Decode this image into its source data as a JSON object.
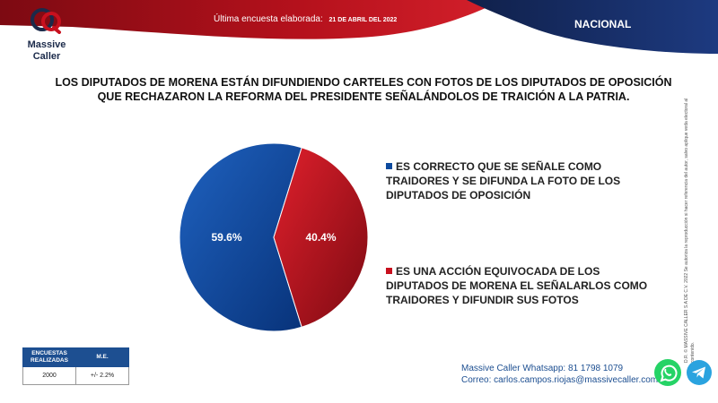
{
  "header": {
    "brand": "Massive Caller",
    "brand_line1": "Massive",
    "brand_line2": "Caller",
    "last_poll_label": "Última encuesta elaborada:",
    "last_poll_date": "21 DE ABRIL DEL 2022",
    "scope": "NACIONAL"
  },
  "headline": "LOS DIPUTADOS DE MORENA ESTÁN DIFUNDIENDO CARTELES CON FOTOS DE LOS DIPUTADOS DE OPOSICIÓN QUE RECHAZARON LA REFORMA DEL PRESIDENTE SEÑALÁNDOLOS DE TRAICIÓN A LA PATRIA.",
  "chart_data": {
    "type": "pie",
    "title": "",
    "slices": [
      {
        "label": "ES CORRECTO QUE SE SEÑALE COMO TRAIDORES Y SE DIFUNDA LA FOTO DE LOS DIPUTADOS DE OPOSICIÓN",
        "value": 59.6,
        "display": "59.6%",
        "color": "#0d4a9e"
      },
      {
        "label": "ES UNA ACCIÓN EQUIVOCADA DE LOS DIPUTADOS DE MORENA EL SEÑALARLOS COMO TRAIDORES Y DIFUNDIR SUS FOTOS",
        "value": 40.4,
        "display": "40.4%",
        "color": "#c8101e"
      }
    ],
    "legend_position": "right"
  },
  "stats_table": {
    "headers": [
      "ENCUESTAS REALIZADAS",
      "M.E."
    ],
    "values": [
      "2000",
      "+/- 2.2%"
    ]
  },
  "contact": {
    "whatsapp_label": "Massive Caller Whatsapp:",
    "whatsapp_number": "81 1798 1079",
    "email_label": "Correo:",
    "email": "carlos.campos.riojas@massivecaller.com"
  },
  "side_note": "D.R. © MASSIVE CALLER S.A DE C.V. 2022 Se autoriza la reproducción si hacer referencia del autor, salvo aplique veda electoral al contenido.",
  "colors": {
    "blue": "#0d4a9e",
    "red": "#c8101e",
    "dark_red": "#8a0c14",
    "navy": "#1b2a4a"
  }
}
